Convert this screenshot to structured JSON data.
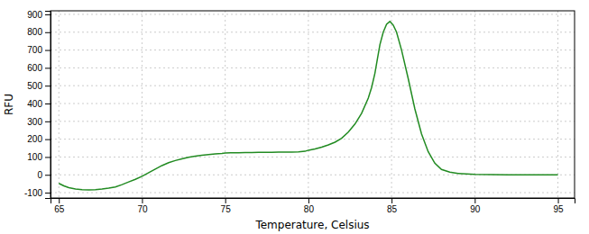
{
  "chart_data": {
    "type": "line",
    "xlabel": "Temperature, Celsius",
    "ylabel": "RFU",
    "x": [
      65.0,
      65.3,
      65.6,
      66.0,
      66.4,
      66.8,
      67.2,
      67.6,
      68.0,
      68.4,
      68.8,
      69.2,
      69.6,
      70.0,
      70.4,
      70.8,
      71.2,
      71.6,
      72.0,
      72.4,
      72.8,
      73.2,
      73.6,
      74.0,
      74.4,
      74.8,
      75.0,
      75.4,
      75.8,
      76.2,
      76.6,
      77.0,
      77.4,
      77.8,
      78.2,
      78.6,
      79.0,
      79.4,
      79.8,
      80.0,
      80.4,
      80.8,
      81.2,
      81.6,
      82.0,
      82.4,
      82.8,
      83.2,
      83.6,
      83.8,
      84.0,
      84.15,
      84.3,
      84.5,
      84.7,
      84.9,
      85.1,
      85.3,
      85.6,
      86.0,
      86.4,
      86.8,
      87.2,
      87.6,
      88.0,
      88.5,
      89.0,
      90.0,
      91.0,
      92.0,
      93.0,
      94.0,
      95.0
    ],
    "values": [
      -48,
      -62,
      -72,
      -80,
      -83,
      -85,
      -83,
      -80,
      -75,
      -68,
      -55,
      -40,
      -25,
      -8,
      12,
      32,
      52,
      68,
      80,
      90,
      98,
      105,
      110,
      114,
      117,
      120,
      122,
      124,
      124,
      125,
      125,
      126,
      126,
      126,
      127,
      127,
      128,
      129,
      132,
      138,
      145,
      155,
      168,
      183,
      205,
      240,
      285,
      345,
      430,
      490,
      570,
      650,
      730,
      800,
      845,
      860,
      840,
      800,
      700,
      540,
      370,
      230,
      130,
      65,
      30,
      15,
      8,
      3,
      1,
      0,
      0,
      0,
      0
    ],
    "color": "#228B22",
    "xlim": [
      64.5,
      96
    ],
    "ylim": [
      -130,
      920
    ],
    "xticks": [
      65,
      70,
      75,
      80,
      85,
      90,
      95
    ],
    "yticks": [
      -100,
      0,
      100,
      200,
      300,
      400,
      500,
      600,
      700,
      800,
      900
    ],
    "grid": true
  }
}
